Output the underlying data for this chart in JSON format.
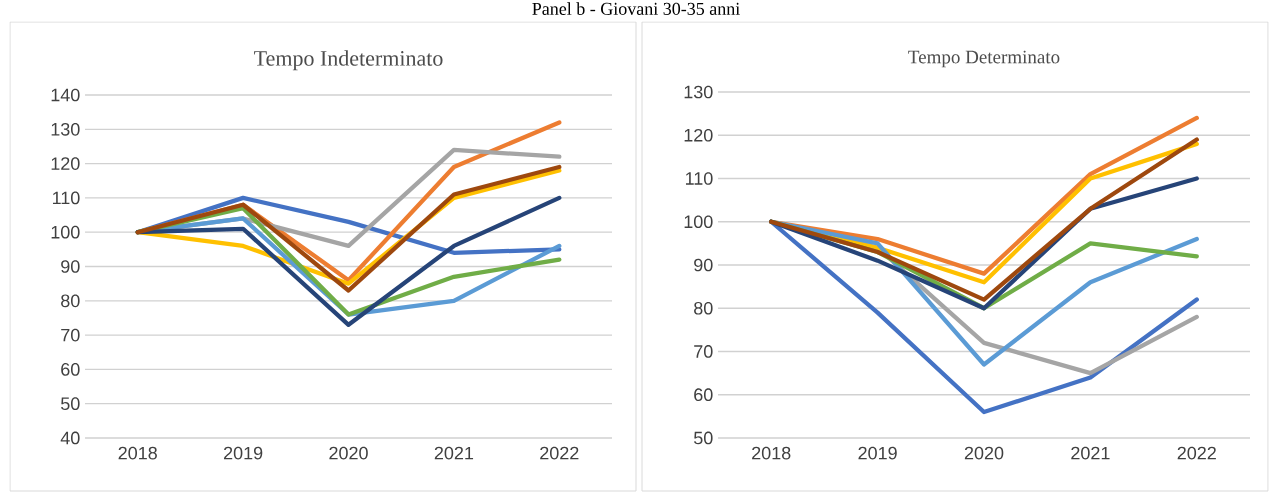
{
  "chart_data": [
    {
      "type": "line",
      "title": "Tempo Indeterminato",
      "annotations": [
        "Panel b - Giovani 30-35 anni"
      ],
      "categories": [
        "2018",
        "2019",
        "2020",
        "2021",
        "2022"
      ],
      "ylim": [
        40,
        140
      ],
      "yticks": [
        40,
        50,
        60,
        70,
        80,
        90,
        100,
        110,
        120,
        130,
        140
      ],
      "grid": "y",
      "series": [
        {
          "color": "#4472c4",
          "values": [
            100,
            110,
            103,
            94,
            95
          ]
        },
        {
          "color": "#ed7d31",
          "values": [
            100,
            108,
            86,
            119,
            132
          ]
        },
        {
          "color": "#a5a5a5",
          "values": [
            100,
            104,
            96,
            124,
            122
          ]
        },
        {
          "color": "#ffc000",
          "values": [
            100,
            96,
            85,
            110,
            118
          ]
        },
        {
          "color": "#5b9bd5",
          "values": [
            100,
            104,
            76,
            80,
            96
          ]
        },
        {
          "color": "#70ad47",
          "values": [
            100,
            107,
            76,
            87,
            92
          ]
        },
        {
          "color": "#264478",
          "values": [
            100,
            101,
            73,
            96,
            110
          ]
        },
        {
          "color": "#9e480e",
          "values": [
            100,
            108,
            83,
            111,
            119
          ]
        }
      ]
    },
    {
      "type": "line",
      "title": "Tempo Determinato",
      "categories": [
        "2018",
        "2019",
        "2020",
        "2021",
        "2022"
      ],
      "ylim": [
        50,
        130
      ],
      "yticks": [
        50,
        60,
        70,
        80,
        90,
        100,
        110,
        120,
        130
      ],
      "grid": "y",
      "series": [
        {
          "color": "#4472c4",
          "values": [
            100,
            79,
            56,
            64,
            82
          ]
        },
        {
          "color": "#ed7d31",
          "values": [
            100,
            96,
            88,
            111,
            124
          ]
        },
        {
          "color": "#a5a5a5",
          "values": [
            100,
            94,
            72,
            65,
            78
          ]
        },
        {
          "color": "#ffc000",
          "values": [
            100,
            94,
            86,
            110,
            118
          ]
        },
        {
          "color": "#5b9bd5",
          "values": [
            100,
            95,
            67,
            86,
            96
          ]
        },
        {
          "color": "#70ad47",
          "values": [
            100,
            93,
            80,
            95,
            92
          ]
        },
        {
          "color": "#264478",
          "values": [
            100,
            91,
            80,
            103,
            110
          ]
        },
        {
          "color": "#9e480e",
          "values": [
            100,
            93,
            82,
            103,
            119
          ]
        }
      ]
    }
  ]
}
